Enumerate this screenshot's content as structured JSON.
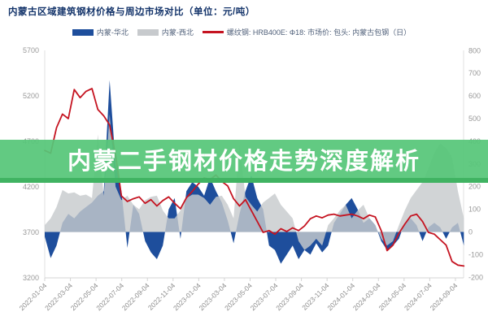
{
  "header": {
    "title": "内蒙古区域建筑钢材价格与周边市场对比（单位：元/吨）"
  },
  "overlay": {
    "banner_text": "内蒙二手钢材价格走势深度解析",
    "background_color": "#57c679",
    "text_color": "#ffffff"
  },
  "legend": [
    {
      "label": "内蒙-华北",
      "color": "#1e4e9c",
      "type": "area"
    },
    {
      "label": "内蒙-西北",
      "color": "#c7cacd",
      "type": "area"
    },
    {
      "label": "螺纹钢: HRB400E: Φ18: 市场价: 包头: 内蒙古包钢（日）",
      "color": "#c51421",
      "type": "line"
    }
  ],
  "chart_data": {
    "type": "area+line combo",
    "title": "内蒙古区域建筑钢材价格与周边市场对比（单位：元/吨）",
    "grid": "off",
    "start_date": "2022-01-04",
    "sample_interval_days": 14,
    "left_axis": {
      "min": 3200,
      "max": 5700,
      "step": 500,
      "ticks": [
        5700,
        5200,
        4700,
        4200,
        3700,
        3200
      ]
    },
    "right_axis": {
      "min": -200,
      "max": 800,
      "step": 100,
      "ticks": [
        800,
        700,
        600,
        500,
        400,
        300,
        200,
        100,
        0,
        -100,
        -200
      ]
    },
    "x_ticks": [
      "2022-01-04",
      "2022-03-04",
      "2022-05-04",
      "2022-07-04",
      "2022-09-04",
      "2022-11-04",
      "2023-01-04",
      "2023-03-04",
      "2023-05-04",
      "2023-07-04",
      "2023-09-04",
      "2023-11-04",
      "2024-01-04",
      "2024-03-04",
      "2024-05-04",
      "2024-07-04",
      "2024-09-04"
    ],
    "series": [
      {
        "name": "内蒙-华北",
        "axis": "right",
        "type": "area",
        "color": "#1e4e9c",
        "opacity": 1,
        "values": [
          -20,
          -115,
          -60,
          40,
          80,
          60,
          90,
          110,
          130,
          160,
          180,
          670,
          300,
          180,
          -70,
          120,
          80,
          -40,
          -90,
          -120,
          -60,
          100,
          150,
          -30,
          180,
          220,
          200,
          160,
          240,
          180,
          130,
          50,
          -50,
          80,
          180,
          250,
          150,
          100,
          -60,
          -80,
          -140,
          -100,
          -60,
          -120,
          -80,
          -100,
          -50,
          -90,
          -60,
          40,
          80,
          120,
          150,
          100,
          40,
          60,
          30,
          -40,
          -80,
          -60,
          -30,
          40,
          60,
          30,
          -40,
          20,
          40,
          20,
          -30,
          20,
          40,
          -60
        ]
      },
      {
        "name": "内蒙-西北",
        "axis": "right",
        "type": "area",
        "color": "#c7cacd",
        "opacity": 0.82,
        "values": [
          30,
          60,
          110,
          185,
          170,
          175,
          160,
          165,
          150,
          430,
          160,
          520,
          200,
          140,
          160,
          120,
          100,
          140,
          155,
          160,
          95,
          60,
          60,
          95,
          150,
          165,
          165,
          150,
          120,
          155,
          160,
          120,
          60,
          390,
          155,
          120,
          90,
          130,
          150,
          170,
          120,
          90,
          60,
          -40,
          -80,
          -60,
          -30,
          -60,
          30,
          60,
          95,
          120,
          60,
          95,
          120,
          60,
          30,
          -30,
          -60,
          -40,
          30,
          95,
          150,
          185,
          220,
          280,
          350,
          390,
          370,
          330,
          180,
          60
        ]
      },
      {
        "name": "螺纹钢: HRB400E: Φ18: 市场价: 包头: 内蒙古包钢（日）",
        "axis": "left",
        "type": "line",
        "color": "#c51421",
        "opacity": 1,
        "values": [
          4600,
          4570,
          4850,
          5000,
          4950,
          5270,
          5180,
          5250,
          5280,
          5050,
          4980,
          4880,
          4550,
          4100,
          4040,
          4070,
          4090,
          4020,
          4060,
          3990,
          4050,
          4090,
          4020,
          3960,
          4080,
          4150,
          4230,
          4300,
          4280,
          4330,
          4260,
          4210,
          4070,
          3990,
          4060,
          3940,
          3820,
          3700,
          3720,
          3680,
          3740,
          3710,
          3750,
          3720,
          3770,
          3850,
          3880,
          3860,
          3890,
          3900,
          3880,
          3890,
          3900,
          3880,
          3850,
          3890,
          3870,
          3720,
          3500,
          3560,
          3690,
          3790,
          3880,
          3900,
          3820,
          3700,
          3680,
          3620,
          3560,
          3380,
          3340,
          3330
        ]
      }
    ]
  }
}
